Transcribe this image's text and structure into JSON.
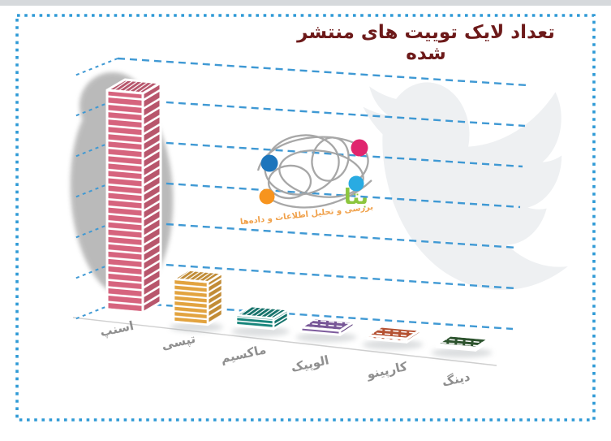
{
  "page": {
    "title": "تعداد لایک توییت های منتشر شده",
    "title_color": "#6d1a1a",
    "background": "#ffffff",
    "top_strip_color": "#d6d9dc",
    "border": {
      "color": "#2f9ad6",
      "style": "dotted"
    }
  },
  "watermark": {
    "brand": "بتا",
    "brand_color": "#8cc63e",
    "tagline": "بررسی و تحلیل اطلاعات و داده‌ها",
    "tagline_color": "#f0a14b",
    "scribble_color": "#a3a3a3",
    "dots": [
      {
        "name": "magenta-dot",
        "color": "#e0256e"
      },
      {
        "name": "blue-dot",
        "color": "#1c75bc"
      },
      {
        "name": "light-blue-dot",
        "color": "#29abe2"
      },
      {
        "name": "orange-dot",
        "color": "#f7941e"
      }
    ],
    "background_icon": "twitter-bird-silhouette",
    "background_icon_color": "#eef0f2"
  },
  "chart_data": {
    "type": "bar",
    "projection": "3d-perspective",
    "title": "تعداد لایک توییت های منتشر شده",
    "categories": [
      "اسنپ",
      "تپسی",
      "ماکسیم",
      "الوپیک",
      "کارپینو",
      "دینگ"
    ],
    "values_gridline_units": [
      5.4,
      1.05,
      0.26,
      0.1,
      0.08,
      0.06
    ],
    "bar_colors": [
      "#d6647e",
      "#e2a33f",
      "#17857b",
      "#7d5b9d",
      "#bd5434",
      "#2f5630"
    ],
    "xlabel": "",
    "ylabel": "",
    "axis_tick_labels_visible": false,
    "gridlines": {
      "count": 7,
      "color": "#3f99d4",
      "style": "dashed"
    },
    "legend": null,
    "label_color": "#8f8f8f",
    "shadow_color": "#aaaaaa"
  }
}
